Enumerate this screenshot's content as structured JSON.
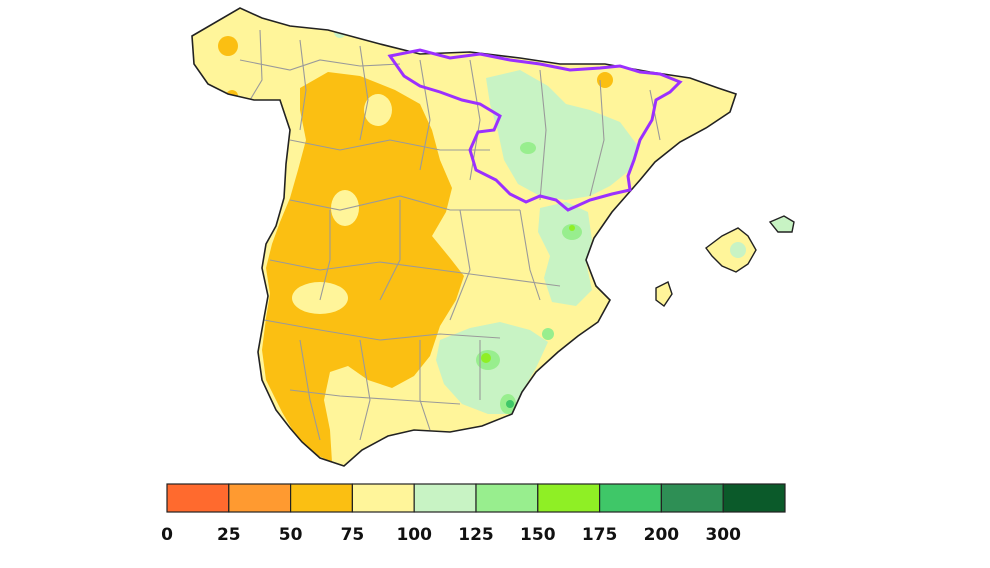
{
  "map": {
    "region_outline_color": "#9b30ff",
    "coast_color": "#222222",
    "province_border_color": "#9a9a9a"
  },
  "legend": {
    "bins": [
      {
        "color": "#ff6a2e"
      },
      {
        "color": "#ff9a30"
      },
      {
        "color": "#fbbf12"
      },
      {
        "color": "#fff59a"
      },
      {
        "color": "#c8f3c4"
      },
      {
        "color": "#98ee8e"
      },
      {
        "color": "#8fef25"
      },
      {
        "color": "#3fc768"
      },
      {
        "color": "#2e8f55"
      },
      {
        "color": "#0b5a2a"
      }
    ],
    "tick_labels": [
      "0",
      "25",
      "50",
      "75",
      "100",
      "125",
      "150",
      "175",
      "200",
      "300"
    ]
  }
}
